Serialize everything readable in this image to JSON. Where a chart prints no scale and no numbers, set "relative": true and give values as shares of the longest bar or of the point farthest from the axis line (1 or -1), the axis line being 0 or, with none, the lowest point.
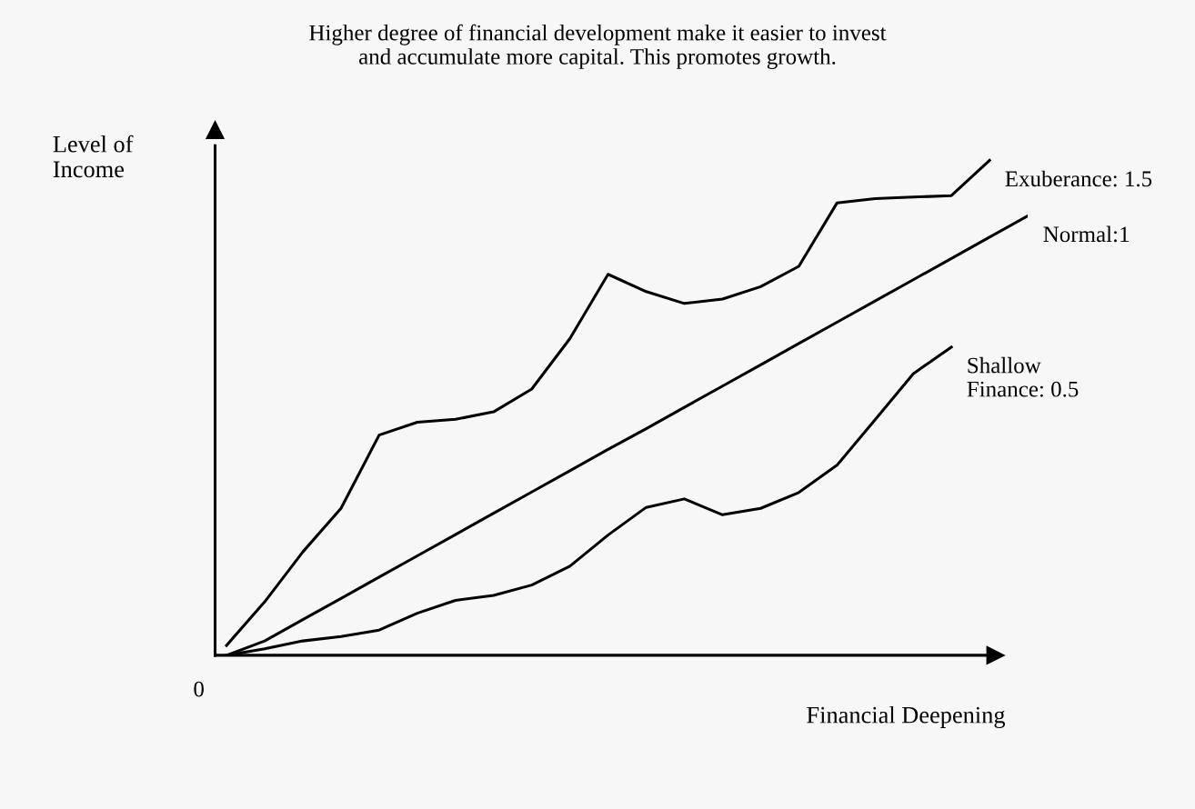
{
  "chart_data": {
    "type": "line",
    "relative": true,
    "title": "Higher degree of financial development make it easier to invest\nand accumulate more capital. This promotes growth.",
    "xlabel": "Financial Deepening",
    "ylabel": "Level of\nIncome",
    "annotations": [
      "0"
    ],
    "marker": "none",
    "line_style": "solid",
    "categories": [
      null,
      null,
      null,
      null,
      null,
      null,
      null,
      null,
      null,
      null,
      null,
      null,
      null,
      null,
      null,
      null,
      null,
      null,
      null,
      null,
      null,
      null
    ],
    "series": [
      {
        "name": "Exuberance: 1.5",
        "color": "#000000",
        "values": [
          0.02,
          0.108,
          0.209,
          0.297,
          0.445,
          0.471,
          0.477,
          0.492,
          0.538,
          0.64,
          0.77,
          0.735,
          0.711,
          0.72,
          0.745,
          0.786,
          0.914,
          0.923,
          0.926,
          0.929,
          1.0,
          null
        ]
      },
      {
        "name": "Normal:1",
        "color": "#000000",
        "values": [
          0.0,
          0.029,
          0.072,
          0.115,
          0.158,
          0.201,
          0.244,
          0.287,
          0.33,
          0.373,
          0.416,
          0.458,
          0.501,
          0.544,
          0.587,
          0.63,
          0.673,
          0.716,
          0.759,
          0.802,
          0.845,
          0.888
        ]
      },
      {
        "name": "Shallow\nFinance: 0.5",
        "color": "#000000",
        "values": [
          0.0,
          0.013,
          0.029,
          0.038,
          0.051,
          0.085,
          0.111,
          0.121,
          0.142,
          0.18,
          0.243,
          0.299,
          0.316,
          0.284,
          0.297,
          0.329,
          0.384,
          0.476,
          0.569,
          0.623,
          null,
          null
        ]
      }
    ]
  }
}
